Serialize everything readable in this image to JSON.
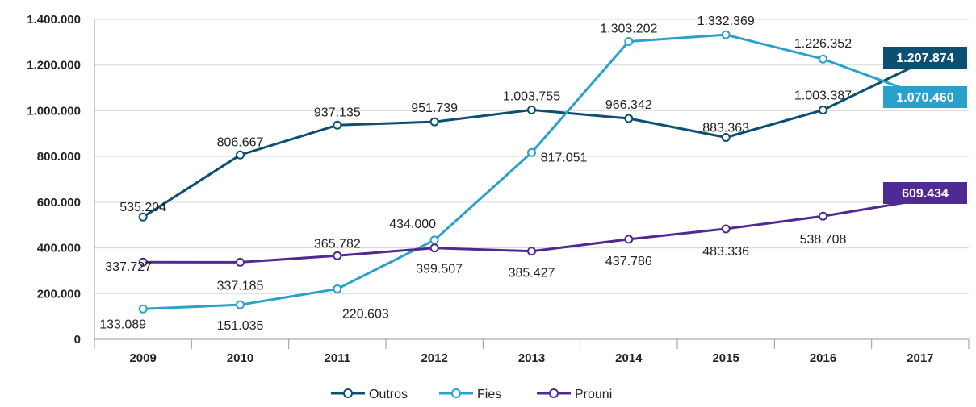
{
  "chart_data": {
    "type": "line",
    "categories": [
      "2009",
      "2010",
      "2011",
      "2012",
      "2013",
      "2014",
      "2015",
      "2016",
      "2017"
    ],
    "ylim": [
      0,
      1400000
    ],
    "yticks": [
      0,
      200000,
      400000,
      600000,
      800000,
      1000000,
      1200000,
      1400000
    ],
    "ytick_labels": [
      "0",
      "200.000",
      "400.000",
      "600.000",
      "800.000",
      "1.000.000",
      "1.200.000",
      "1.400.000"
    ],
    "grid": "horizontal",
    "legend_position": "bottom",
    "series": [
      {
        "name": "Outros",
        "color": "#0b4f73",
        "values": [
          535204,
          806667,
          937135,
          951739,
          1003755,
          966342,
          883363,
          1003387,
          1207874
        ],
        "labels": [
          "535.204",
          "806.667",
          "937.135",
          "951.739",
          "1.003.755",
          "966.342",
          "883.363",
          "1.003.387",
          "1.207.874"
        ]
      },
      {
        "name": "Fies",
        "color": "#2aa1cc",
        "values": [
          133089,
          151035,
          220603,
          434000,
          817051,
          1303202,
          1332369,
          1226352,
          1070460
        ],
        "labels": [
          "133.089",
          "151.035",
          "220.603",
          "434.000",
          "817.051",
          "1.303.202",
          "1.332.369",
          "1.226.352",
          "1.070.460"
        ]
      },
      {
        "name": "Prouni",
        "color": "#4f2a94",
        "values": [
          337727,
          337185,
          365782,
          399507,
          385427,
          437786,
          483336,
          538708,
          609434
        ],
        "labels": [
          "337.727",
          "337.185",
          "365.782",
          "399.507",
          "385.427",
          "437.786",
          "483.336",
          "538.708",
          "609.434"
        ]
      }
    ]
  }
}
